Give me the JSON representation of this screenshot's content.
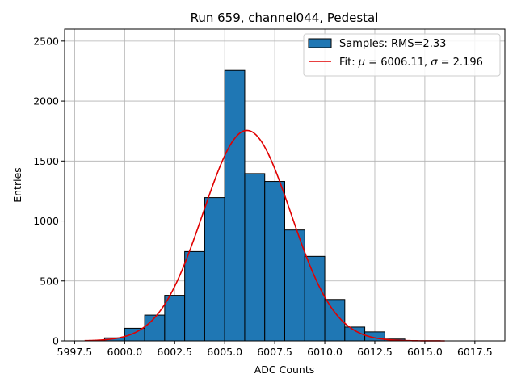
{
  "chart_data": {
    "type": "bar",
    "title": "Run 659, channel044, Pedestal",
    "xlabel": "ADC Counts",
    "ylabel": "Entries",
    "xlim": [
      5997.0,
      6019.0
    ],
    "ylim": [
      0,
      2600
    ],
    "grid": true,
    "legend_position": "top-right",
    "x_ticks": [
      "5997.5",
      "6000.0",
      "6002.5",
      "6005.0",
      "6007.5",
      "6010.0",
      "6012.5",
      "6015.0",
      "6017.5"
    ],
    "y_ticks": [
      "0",
      "500",
      "1000",
      "1500",
      "2000",
      "2500"
    ],
    "histogram": {
      "name": "Samples: RMS=2.33",
      "color": "#1f77b4",
      "bins": [
        {
          "left": 5999,
          "right": 6000,
          "count": 25
        },
        {
          "left": 6000,
          "right": 6001,
          "count": 105
        },
        {
          "left": 6001,
          "right": 6002,
          "count": 215
        },
        {
          "left": 6002,
          "right": 6003,
          "count": 380
        },
        {
          "left": 6003,
          "right": 6004,
          "count": 745
        },
        {
          "left": 6004,
          "right": 6005,
          "count": 1195
        },
        {
          "left": 6005,
          "right": 6006,
          "count": 2255
        },
        {
          "left": 6006,
          "right": 6007,
          "count": 1395
        },
        {
          "left": 6007,
          "right": 6008,
          "count": 1330
        },
        {
          "left": 6008,
          "right": 6009,
          "count": 925
        },
        {
          "left": 6009,
          "right": 6010,
          "count": 705
        },
        {
          "left": 6010,
          "right": 6011,
          "count": 345
        },
        {
          "left": 6011,
          "right": 6012,
          "count": 115
        },
        {
          "left": 6012,
          "right": 6013,
          "count": 75
        },
        {
          "left": 6013,
          "right": 6014,
          "count": 15
        }
      ]
    },
    "fit": {
      "name_prefix": "Fit: ",
      "name_mu": "μ",
      "name_mid": " = 6006.11, ",
      "name_sigma": "σ",
      "name_suffix": " = 2.196",
      "color": "#e00000",
      "mu": 6006.11,
      "sigma": 2.196,
      "amplitude": 1755,
      "x_range": [
        5998,
        6016
      ]
    }
  }
}
